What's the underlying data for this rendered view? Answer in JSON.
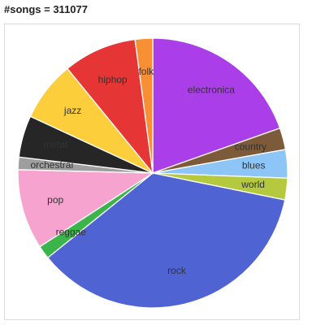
{
  "chart_data": {
    "type": "pie",
    "title": "#songs = 311077",
    "legend": "none",
    "slices": [
      {
        "label": "electronica",
        "value": 19.6,
        "color": "#aa3ee8"
      },
      {
        "label": "country",
        "value": 2.6,
        "color": "#7d5a3a"
      },
      {
        "label": "blues",
        "value": 3.4,
        "color": "#8ec5f7"
      },
      {
        "label": "world",
        "value": 2.6,
        "color": "#b5c93e"
      },
      {
        "label": "rock",
        "value": 36.0,
        "color": "#4f63d2"
      },
      {
        "label": "reggae",
        "value": 1.6,
        "color": "#3bb54a"
      },
      {
        "label": "pop",
        "value": 9.6,
        "color": "#f7a3cf"
      },
      {
        "label": "orchestral",
        "value": 1.5,
        "color": "#9e9e9e"
      },
      {
        "label": "metal",
        "value": 5.0,
        "color": "#262626"
      },
      {
        "label": "jazz",
        "value": 7.2,
        "color": "#fcce3c"
      },
      {
        "label": "hiphop",
        "value": 8.8,
        "color": "#e53535"
      },
      {
        "label": "folk",
        "value": 2.1,
        "color": "#f98f35"
      }
    ]
  }
}
